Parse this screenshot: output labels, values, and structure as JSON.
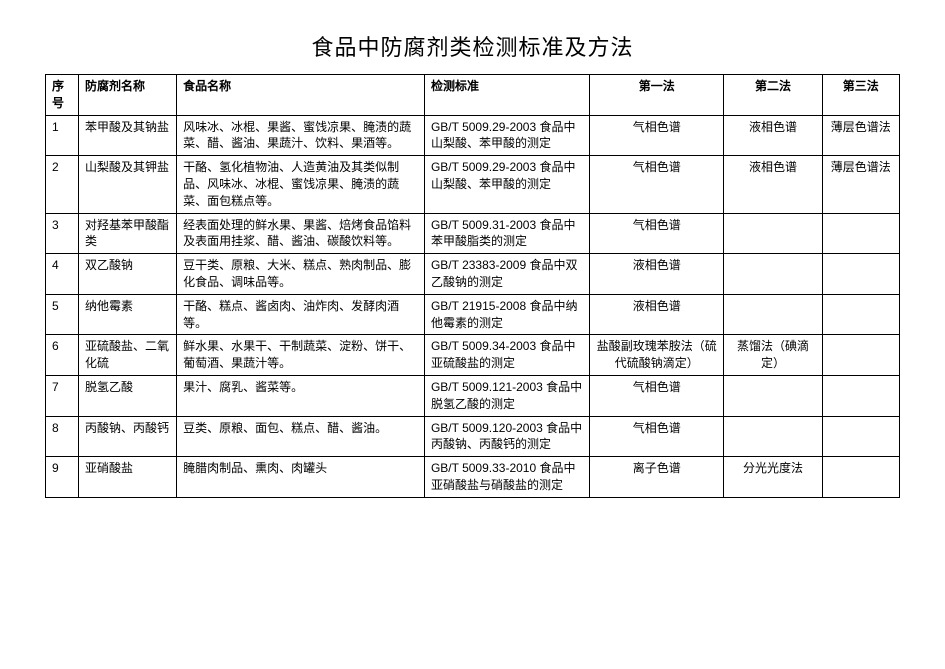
{
  "title": "食品中防腐剂类检测标准及方法",
  "columns": [
    "序号",
    "防腐剂名称",
    "食品名称",
    "检测标准",
    "第一法",
    "第二法",
    "第三法"
  ],
  "rows": [
    {
      "idx": "1",
      "name": "苯甲酸及其钠盐",
      "food": "风味冰、冰棍、果酱、蜜饯凉果、腌渍的蔬菜、醋、酱油、果蔬汁、饮料、果酒等。",
      "std": "GB/T 5009.29-2003 食品中山梨酸、苯甲酸的测定",
      "m1": "气相色谱",
      "m2": "液相色谱",
      "m3": "薄层色谱法"
    },
    {
      "idx": "2",
      "name": "山梨酸及其钾盐",
      "food": "干酪、氢化植物油、人造黄油及其类似制品、风味冰、冰棍、蜜饯凉果、腌渍的蔬菜、面包糕点等。",
      "std": "GB/T 5009.29-2003 食品中山梨酸、苯甲酸的测定",
      "m1": "气相色谱",
      "m2": "液相色谱",
      "m3": "薄层色谱法"
    },
    {
      "idx": "3",
      "name": "对羟基苯甲酸酯类",
      "food": "经表面处理的鲜水果、果酱、焙烤食品馅料及表面用挂浆、醋、酱油、碳酸饮料等。",
      "std": "GB/T 5009.31-2003 食品中苯甲酸脂类的测定",
      "m1": "气相色谱",
      "m2": "",
      "m3": ""
    },
    {
      "idx": "4",
      "name": "双乙酸钠",
      "food": "豆干类、原粮、大米、糕点、熟肉制品、膨化食品、调味品等。",
      "std": "GB/T 23383-2009 食品中双乙酸钠的测定",
      "m1": "液相色谱",
      "m2": "",
      "m3": ""
    },
    {
      "idx": "5",
      "name": "纳他霉素",
      "food": "干酪、糕点、酱卤肉、油炸肉、发酵肉酒等。",
      "std": "GB/T 21915-2008 食品中纳他霉素的测定",
      "m1": "液相色谱",
      "m2": "",
      "m3": ""
    },
    {
      "idx": "6",
      "name": "亚硫酸盐、二氧化硫",
      "food": "鲜水果、水果干、干制蔬菜、淀粉、饼干、葡萄酒、果蔬汁等。",
      "std": "GB/T 5009.34-2003 食品中亚硫酸盐的测定",
      "m1": "盐酸副玫瑰苯胺法（硫代硫酸钠滴定）",
      "m2": "蒸馏法（碘滴定）",
      "m3": ""
    },
    {
      "idx": "7",
      "name": "脱氢乙酸",
      "food": "果汁、腐乳、酱菜等。",
      "std": "GB/T 5009.121-2003 食品中脱氢乙酸的测定",
      "m1": "气相色谱",
      "m2": "",
      "m3": ""
    },
    {
      "idx": "8",
      "name": "丙酸钠、丙酸钙",
      "food": "豆类、原粮、面包、糕点、醋、酱油。",
      "std": "GB/T 5009.120-2003 食品中丙酸钠、丙酸钙的测定",
      "m1": "气相色谱",
      "m2": "",
      "m3": ""
    },
    {
      "idx": "9",
      "name": "亚硝酸盐",
      "food": "腌腊肉制品、熏肉、肉罐头",
      "std": "GB/T 5009.33-2010 食品中亚硝酸盐与硝酸盐的测定",
      "m1": "离子色谱",
      "m2": "分光光度法",
      "m3": ""
    }
  ]
}
